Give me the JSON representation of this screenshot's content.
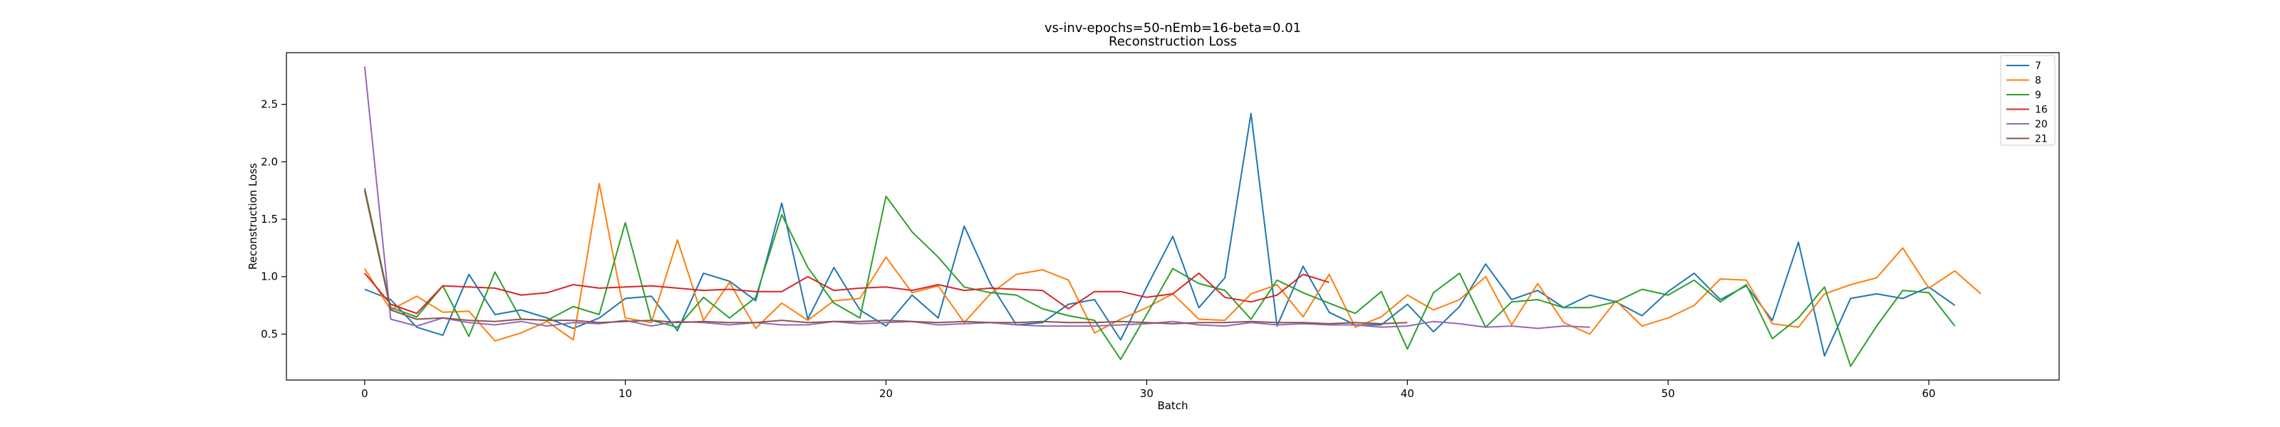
{
  "chart_data": {
    "type": "line",
    "title": "vs-inv-epochs=50-nEmb=16-beta=0.01",
    "subtitle": "Reconstruction Loss",
    "xlabel": "Batch",
    "ylabel": "Reconstruction Loss",
    "xlim": [
      -3,
      65
    ],
    "ylim": [
      0.1,
      2.95
    ],
    "xticks": [
      0,
      10,
      20,
      30,
      40,
      50,
      60
    ],
    "yticks": [
      0.5,
      1.0,
      1.5,
      2.0,
      2.5
    ],
    "xtick_labels": [
      "0",
      "10",
      "20",
      "30",
      "40",
      "50",
      "60"
    ],
    "ytick_labels": [
      "0.5",
      "1.0",
      "1.5",
      "2.0",
      "2.5"
    ],
    "grid": false,
    "legend_position": "top-right",
    "series": [
      {
        "name": "7",
        "color": "#1f77b4",
        "values": [
          0.89,
          0.8,
          0.56,
          0.49,
          1.02,
          0.67,
          0.71,
          0.64,
          0.55,
          0.64,
          0.81,
          0.83,
          0.53,
          1.03,
          0.96,
          0.79,
          1.64,
          0.63,
          1.08,
          0.71,
          0.57,
          0.84,
          0.64,
          1.44,
          0.94,
          0.58,
          0.6,
          0.76,
          0.8,
          0.45,
          0.91,
          1.35,
          0.73,
          0.99,
          2.42,
          0.57,
          1.09,
          0.69,
          0.58,
          0.58,
          0.76,
          0.52,
          0.74,
          1.11,
          0.8,
          0.88,
          0.73,
          0.84,
          0.78,
          0.66,
          0.87,
          1.03,
          0.8,
          0.92,
          0.62,
          1.3,
          0.31,
          0.81,
          0.85,
          0.81,
          0.91,
          0.75
        ]
      },
      {
        "name": "8",
        "color": "#ff7f0e",
        "values": [
          1.07,
          0.71,
          0.83,
          0.69,
          0.7,
          0.44,
          0.51,
          0.61,
          0.45,
          1.81,
          0.64,
          0.6,
          1.32,
          0.62,
          0.95,
          0.55,
          0.77,
          0.62,
          0.79,
          0.81,
          1.17,
          0.86,
          0.92,
          0.6,
          0.85,
          1.02,
          1.06,
          0.97,
          0.51,
          0.63,
          0.73,
          0.85,
          0.63,
          0.62,
          0.85,
          0.93,
          0.65,
          1.02,
          0.56,
          0.65,
          0.84,
          0.71,
          0.8,
          1.0,
          0.58,
          0.94,
          0.6,
          0.5,
          0.79,
          0.57,
          0.64,
          0.75,
          0.98,
          0.97,
          0.59,
          0.56,
          0.85,
          0.93,
          0.99,
          1.25,
          0.9,
          1.05,
          0.85
        ]
      },
      {
        "name": "9",
        "color": "#2ca02c",
        "values": [
          1.77,
          0.73,
          0.65,
          0.92,
          0.48,
          1.04,
          0.63,
          0.62,
          0.74,
          0.67,
          1.47,
          0.62,
          0.56,
          0.82,
          0.64,
          0.82,
          1.54,
          1.08,
          0.77,
          0.64,
          1.7,
          1.39,
          1.17,
          0.91,
          0.86,
          0.84,
          0.72,
          0.66,
          0.62,
          0.28,
          0.67,
          1.07,
          0.94,
          0.88,
          0.63,
          0.97,
          0.86,
          0.77,
          0.68,
          0.87,
          0.37,
          0.86,
          1.03,
          0.56,
          0.78,
          0.8,
          0.73,
          0.73,
          0.78,
          0.89,
          0.84,
          0.97,
          0.78,
          0.93,
          0.46,
          0.64,
          0.91,
          0.22,
          0.57,
          0.88,
          0.86,
          0.57
        ]
      },
      {
        "name": "16",
        "color": "#d62728",
        "values": [
          1.03,
          0.76,
          0.68,
          0.92,
          0.91,
          0.9,
          0.84,
          0.86,
          0.93,
          0.9,
          0.91,
          0.92,
          0.9,
          0.88,
          0.89,
          0.87,
          0.87,
          1.0,
          0.88,
          0.9,
          0.91,
          0.88,
          0.93,
          0.88,
          0.9,
          0.89,
          0.88,
          0.72,
          0.87,
          0.87,
          0.82,
          0.85,
          1.03,
          0.82,
          0.78,
          0.84,
          1.02,
          0.95
        ]
      },
      {
        "name": "20",
        "color": "#9467bd",
        "values": [
          2.83,
          0.63,
          0.57,
          0.64,
          0.6,
          0.58,
          0.61,
          0.57,
          0.6,
          0.59,
          0.62,
          0.57,
          0.61,
          0.6,
          0.58,
          0.6,
          0.58,
          0.58,
          0.61,
          0.59,
          0.6,
          0.61,
          0.58,
          0.59,
          0.6,
          0.58,
          0.57,
          0.57,
          0.57,
          0.58,
          0.59,
          0.61,
          0.58,
          0.57,
          0.6,
          0.58,
          0.59,
          0.58,
          0.58,
          0.56,
          0.57,
          0.61,
          0.59,
          0.56,
          0.57,
          0.55,
          0.57,
          0.56
        ]
      },
      {
        "name": "21",
        "color": "#8c564b",
        "values": [
          1.75,
          0.71,
          0.63,
          0.64,
          0.62,
          0.61,
          0.63,
          0.62,
          0.62,
          0.6,
          0.61,
          0.62,
          0.6,
          0.61,
          0.6,
          0.6,
          0.62,
          0.6,
          0.61,
          0.61,
          0.62,
          0.61,
          0.6,
          0.61,
          0.6,
          0.6,
          0.61,
          0.6,
          0.6,
          0.61,
          0.6,
          0.59,
          0.6,
          0.6,
          0.61,
          0.6,
          0.6,
          0.59,
          0.6,
          0.59,
          0.6
        ]
      }
    ]
  }
}
